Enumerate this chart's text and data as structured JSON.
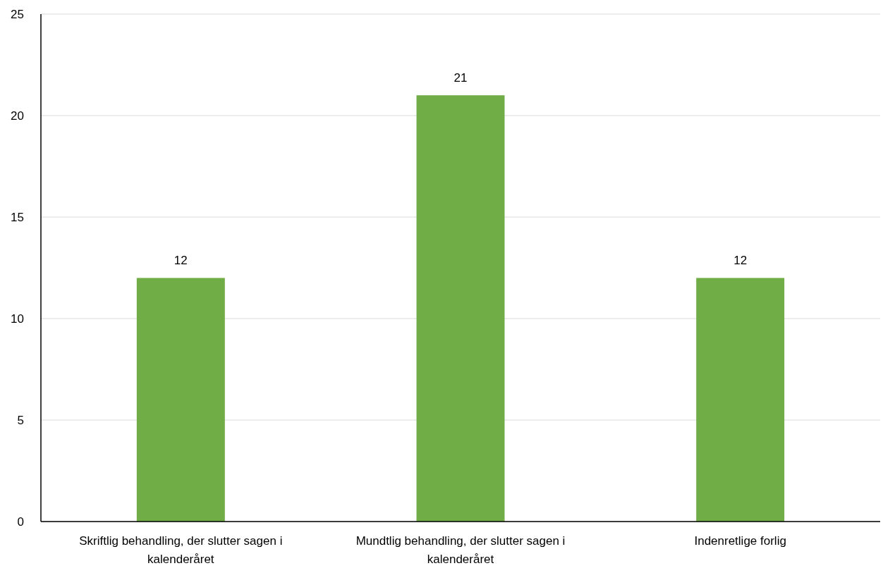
{
  "chart_data": {
    "type": "bar",
    "categories": [
      "Skriftlig behandling, der slutter sagen i kalenderåret",
      "Mundtlig behandling, der slutter sagen i kalenderåret",
      "Indenretlige forlig"
    ],
    "values": [
      12,
      21,
      12
    ],
    "color": "#70ad47",
    "ylim": [
      0,
      25
    ],
    "yticks": [
      0,
      5,
      10,
      15,
      20,
      25
    ],
    "grid": "y",
    "data_labels": true
  }
}
